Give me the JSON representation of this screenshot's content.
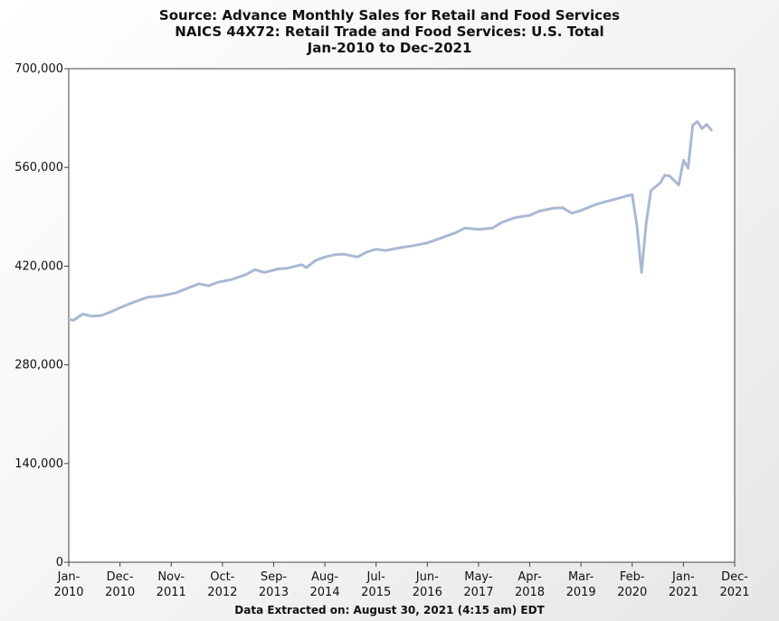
{
  "chart_data": {
    "type": "line",
    "title_lines": [
      "Source: Advance Monthly Sales for Retail and Food Services",
      "NAICS 44X72: Retail Trade and Food Services: U.S. Total",
      "Jan-2010 to Dec-2021"
    ],
    "footer": "Data Extracted on: August 30, 2021 (4:15 am) EDT",
    "ylim": [
      0,
      700000
    ],
    "yticks": [
      0,
      140000,
      280000,
      420000,
      560000,
      700000
    ],
    "ytick_labels": [
      "0",
      "140,000",
      "280,000",
      "420,000",
      "560,000",
      "700,000"
    ],
    "xlim": [
      "2010-01",
      "2021-12"
    ],
    "xtick_labels": [
      {
        "month": "2010-01",
        "line1": "Jan-",
        "line2": "2010"
      },
      {
        "month": "2010-12",
        "line1": "Dec-",
        "line2": "2010"
      },
      {
        "month": "2011-11",
        "line1": "Nov-",
        "line2": "2011"
      },
      {
        "month": "2012-10",
        "line1": "Oct-",
        "line2": "2012"
      },
      {
        "month": "2013-09",
        "line1": "Sep-",
        "line2": "2013"
      },
      {
        "month": "2014-08",
        "line1": "Aug-",
        "line2": "2014"
      },
      {
        "month": "2015-07",
        "line1": "Jul-",
        "line2": "2015"
      },
      {
        "month": "2016-06",
        "line1": "Jun-",
        "line2": "2016"
      },
      {
        "month": "2017-05",
        "line1": "May-",
        "line2": "2017"
      },
      {
        "month": "2018-04",
        "line1": "Apr-",
        "line2": "2018"
      },
      {
        "month": "2019-03",
        "line1": "Mar-",
        "line2": "2019"
      },
      {
        "month": "2020-02",
        "line1": "Feb-",
        "line2": "2020"
      },
      {
        "month": "2021-01",
        "line1": "Jan-",
        "line2": "2021"
      },
      {
        "month": "2021-12",
        "line1": "Dec-",
        "line2": "2021"
      }
    ],
    "grid": false,
    "series": [
      {
        "color": "#a9b9d3",
        "points": [
          [
            "2010-01",
            345000
          ],
          [
            "2010-02",
            343000
          ],
          [
            "2010-04",
            352000
          ],
          [
            "2010-06",
            349000
          ],
          [
            "2010-08",
            350000
          ],
          [
            "2010-10",
            355000
          ],
          [
            "2010-12",
            361000
          ],
          [
            "2011-03",
            369000
          ],
          [
            "2011-06",
            376000
          ],
          [
            "2011-09",
            378000
          ],
          [
            "2011-12",
            382000
          ],
          [
            "2012-03",
            390000
          ],
          [
            "2012-05",
            395000
          ],
          [
            "2012-07",
            392000
          ],
          [
            "2012-09",
            397000
          ],
          [
            "2012-12",
            401000
          ],
          [
            "2013-03",
            408000
          ],
          [
            "2013-05",
            415000
          ],
          [
            "2013-07",
            411000
          ],
          [
            "2013-10",
            416000
          ],
          [
            "2013-12",
            417000
          ],
          [
            "2014-03",
            422000
          ],
          [
            "2014-04",
            418000
          ],
          [
            "2014-06",
            428000
          ],
          [
            "2014-08",
            433000
          ],
          [
            "2014-10",
            436000
          ],
          [
            "2014-12",
            437000
          ],
          [
            "2015-03",
            433000
          ],
          [
            "2015-05",
            440000
          ],
          [
            "2015-07",
            444000
          ],
          [
            "2015-09",
            442000
          ],
          [
            "2015-12",
            446000
          ],
          [
            "2016-03",
            449000
          ],
          [
            "2016-06",
            453000
          ],
          [
            "2016-09",
            460000
          ],
          [
            "2016-12",
            467000
          ],
          [
            "2017-02",
            474000
          ],
          [
            "2017-05",
            472000
          ],
          [
            "2017-08",
            474000
          ],
          [
            "2017-10",
            482000
          ],
          [
            "2018-01",
            489000
          ],
          [
            "2018-04",
            492000
          ],
          [
            "2018-06",
            498000
          ],
          [
            "2018-09",
            502000
          ],
          [
            "2018-11",
            503000
          ],
          [
            "2019-01",
            495000
          ],
          [
            "2019-03",
            499000
          ],
          [
            "2019-06",
            507000
          ],
          [
            "2019-08",
            511000
          ],
          [
            "2019-11",
            516000
          ],
          [
            "2020-01",
            520000
          ],
          [
            "2020-02",
            521000
          ],
          [
            "2020-03",
            478000
          ],
          [
            "2020-04",
            411000
          ],
          [
            "2020-05",
            481000
          ],
          [
            "2020-06",
            527000
          ],
          [
            "2020-08",
            538000
          ],
          [
            "2020-09",
            549000
          ],
          [
            "2020-10",
            548000
          ],
          [
            "2020-12",
            535000
          ],
          [
            "2021-01",
            570000
          ],
          [
            "2021-02",
            559000
          ],
          [
            "2021-03",
            620000
          ],
          [
            "2021-04",
            625000
          ],
          [
            "2021-05",
            615000
          ],
          [
            "2021-06",
            621000
          ],
          [
            "2021-07",
            613000
          ]
        ]
      }
    ]
  }
}
